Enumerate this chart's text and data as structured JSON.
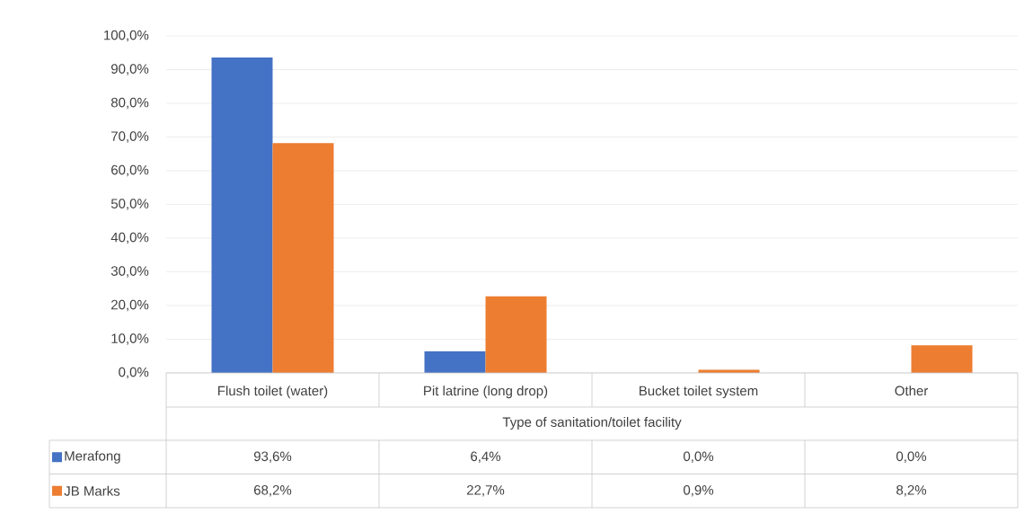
{
  "chart_data": {
    "type": "bar",
    "xlabel": "Type of sanitation/toilet facility",
    "categories": [
      "Flush toilet (water)",
      "Pit latrine (long drop)",
      "Bucket toilet system",
      "Other"
    ],
    "series": [
      {
        "name": "Merafong",
        "color": "#4472c4",
        "values": [
          93.6,
          6.4,
          0.0,
          0.0
        ],
        "value_labels": [
          "93,6%",
          "6,4%",
          "0,0%",
          "0,0%"
        ]
      },
      {
        "name": "JB Marks",
        "color": "#ed7d31",
        "values": [
          68.2,
          22.7,
          0.9,
          8.2
        ],
        "value_labels": [
          "68,2%",
          "22,7%",
          "0,9%",
          "8,2%"
        ]
      }
    ],
    "ylim": [
      0,
      100
    ],
    "yticks": [
      {
        "value": 0,
        "label": "0,0%"
      },
      {
        "value": 10,
        "label": "10,0%"
      },
      {
        "value": 20,
        "label": "20,0%"
      },
      {
        "value": 30,
        "label": "30,0%"
      },
      {
        "value": 40,
        "label": "40,0%"
      },
      {
        "value": 50,
        "label": "50,0%"
      },
      {
        "value": 60,
        "label": "60,0%"
      },
      {
        "value": 70,
        "label": "70,0%"
      },
      {
        "value": 80,
        "label": "80,0%"
      },
      {
        "value": 90,
        "label": "90,0%"
      },
      {
        "value": 100,
        "label": "100,0%"
      }
    ],
    "grid": "y",
    "legend": "bottom"
  }
}
